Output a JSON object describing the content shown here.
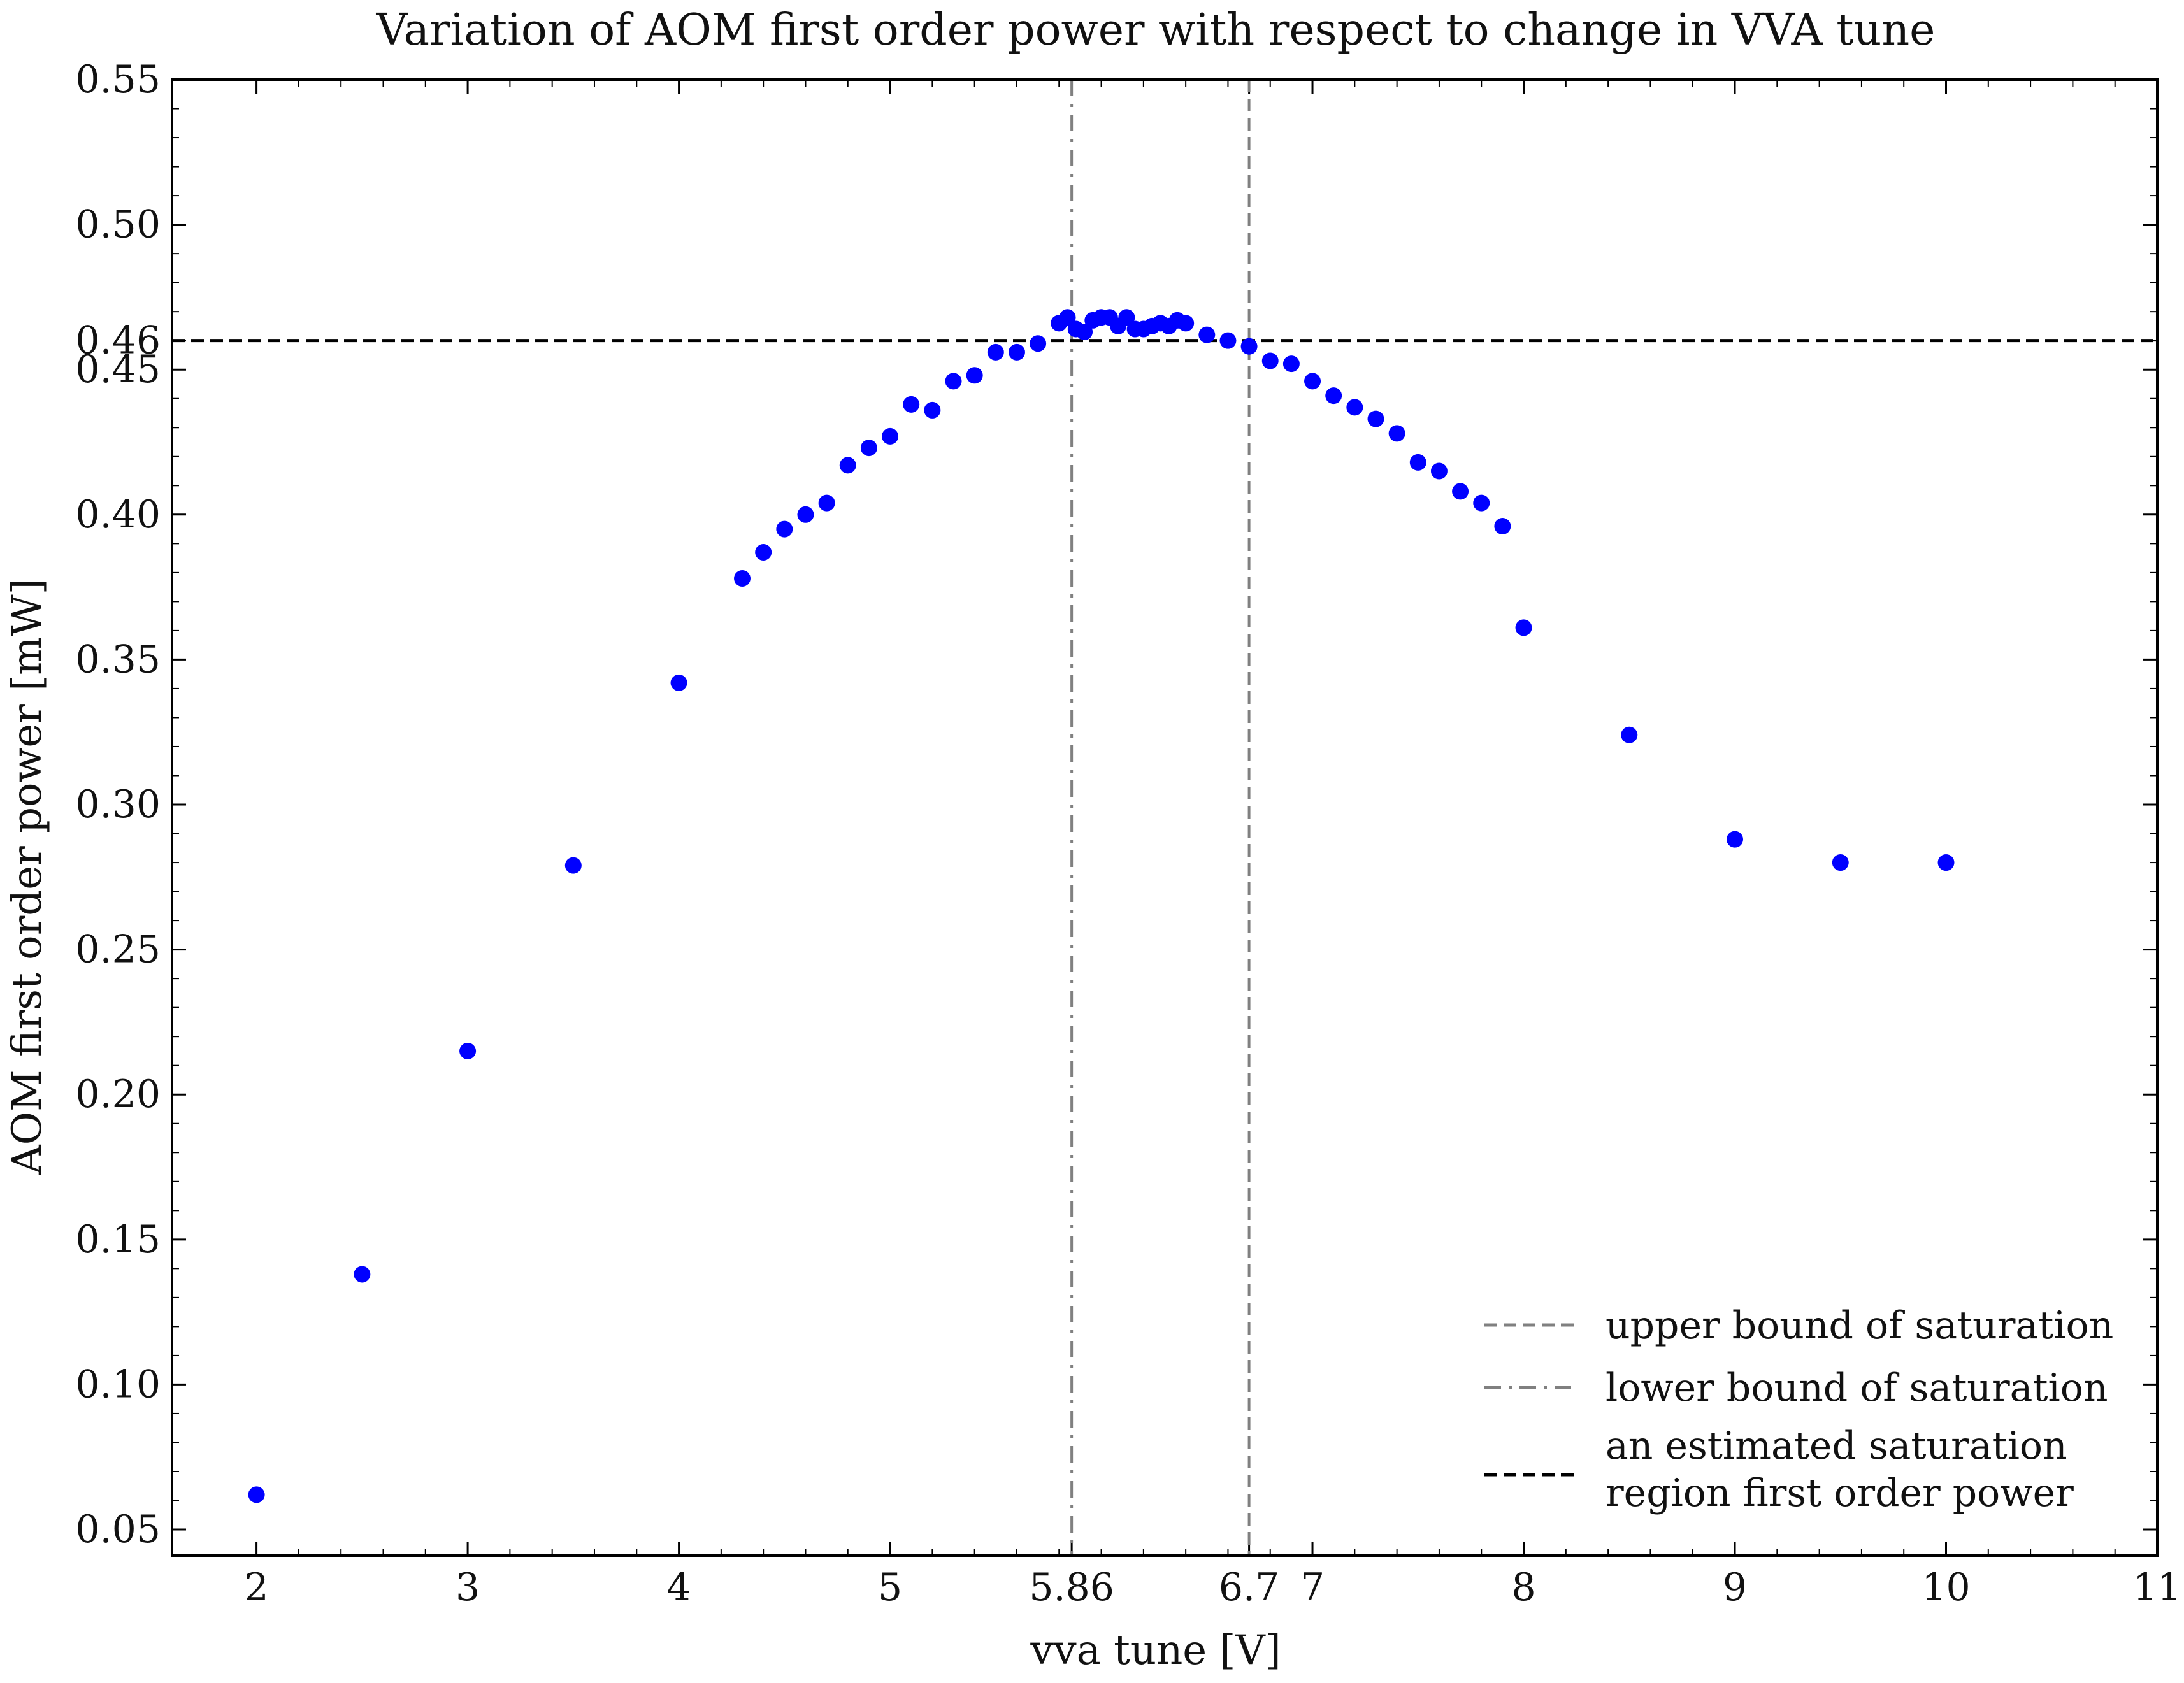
{
  "chart_data": {
    "type": "scatter",
    "title": "Variation of AOM first order power with respect to change in VVA tune",
    "xlabel": "vva tune [V]",
    "ylabel": "AOM first order power [mW]",
    "xlim": [
      1.6,
      11.0
    ],
    "ylim": [
      0.041,
      0.55
    ],
    "x_ticks": [
      2,
      3,
      4,
      5,
      5.86,
      6.7,
      7,
      8,
      9,
      10,
      11
    ],
    "x_tick_labels": [
      "2",
      "3",
      "4",
      "5",
      "5.86",
      "6.7",
      "7",
      "8",
      "9",
      "10",
      "11"
    ],
    "y_ticks": [
      0.05,
      0.1,
      0.15,
      0.2,
      0.25,
      0.3,
      0.35,
      0.4,
      0.45,
      0.46,
      0.5,
      0.55
    ],
    "y_tick_labels": [
      "0.05",
      "0.10",
      "0.15",
      "0.20",
      "0.25",
      "0.30",
      "0.35",
      "0.40",
      "0.45",
      "0.46",
      "0.50",
      "0.55"
    ],
    "grid": false,
    "legend_position": "bottom-right",
    "marker_color": "#0000ff",
    "series": [
      {
        "x": [
          2.0,
          2.5,
          3.0,
          3.5,
          4.0,
          4.3,
          4.4,
          4.5,
          4.6,
          4.7,
          4.8,
          4.9,
          5.0,
          5.1,
          5.2,
          5.3,
          5.4,
          5.5,
          5.6,
          5.7,
          5.8,
          5.84,
          5.88,
          5.92,
          5.96,
          6.0,
          6.04,
          6.08,
          6.12,
          6.16,
          6.2,
          6.24,
          6.28,
          6.32,
          6.36,
          6.4,
          6.5,
          6.6,
          6.7,
          6.8,
          6.9,
          7.0,
          7.1,
          7.2,
          7.3,
          7.4,
          7.5,
          7.6,
          7.7,
          7.8,
          7.9,
          8.0,
          8.5,
          9.0,
          9.5,
          10.0
        ],
        "y": [
          0.062,
          0.138,
          0.215,
          0.279,
          0.342,
          0.378,
          0.387,
          0.395,
          0.4,
          0.404,
          0.417,
          0.423,
          0.427,
          0.438,
          0.436,
          0.446,
          0.448,
          0.456,
          0.456,
          0.459,
          0.466,
          0.468,
          0.464,
          0.463,
          0.467,
          0.468,
          0.468,
          0.465,
          0.468,
          0.464,
          0.464,
          0.465,
          0.466,
          0.465,
          0.467,
          0.466,
          0.462,
          0.46,
          0.458,
          0.453,
          0.452,
          0.446,
          0.441,
          0.437,
          0.433,
          0.428,
          0.418,
          0.415,
          0.408,
          0.404,
          0.396,
          0.361,
          0.324,
          0.288,
          0.28,
          0.28
        ]
      }
    ],
    "reference_lines": [
      {
        "orientation": "vertical",
        "value": 6.7,
        "style": "dashed",
        "color": "#808080",
        "label": "upper bound of saturation"
      },
      {
        "orientation": "vertical",
        "value": 5.86,
        "style": "dashdot",
        "color": "#808080",
        "label": "lower bound of saturation"
      },
      {
        "orientation": "horizontal",
        "value": 0.46,
        "style": "dashed",
        "color": "#000000",
        "label_lines": [
          "an estimated saturation",
          "region first order power"
        ]
      }
    ]
  }
}
